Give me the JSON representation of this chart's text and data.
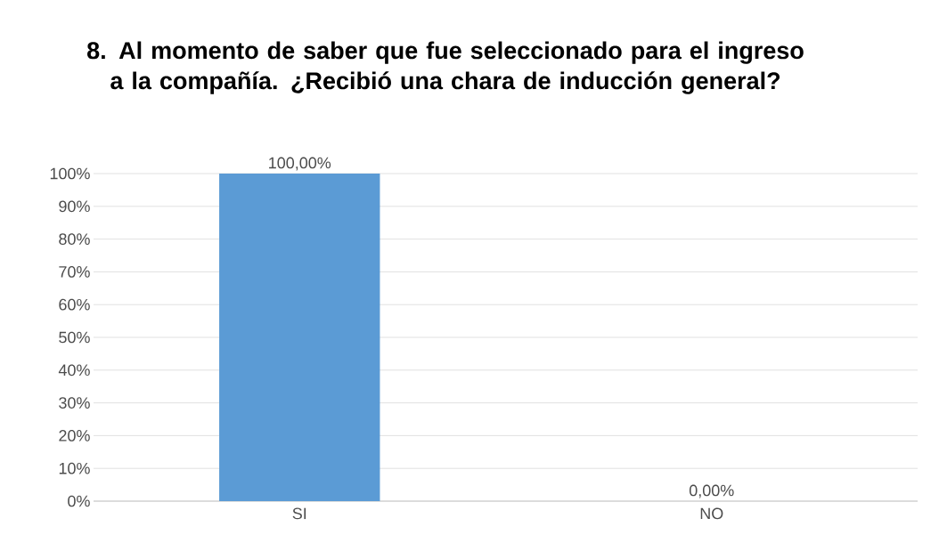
{
  "chart_data": {
    "type": "bar",
    "title": "8. Al momento de saber que fue seleccionado para el ingreso a la compañía. ¿Recibió una chara de inducción general?",
    "categories": [
      "SI",
      "NO"
    ],
    "values": [
      100,
      0
    ],
    "value_labels": [
      "100,00%",
      "0,00%"
    ],
    "color": "#5b9bd5",
    "ylim": [
      0,
      100
    ],
    "yticks": [
      {
        "value": 0,
        "label": "0%"
      },
      {
        "value": 10,
        "label": "10%"
      },
      {
        "value": 20,
        "label": "20%"
      },
      {
        "value": 30,
        "label": "30%"
      },
      {
        "value": 40,
        "label": "40%"
      },
      {
        "value": 50,
        "label": "50%"
      },
      {
        "value": 60,
        "label": "60%"
      },
      {
        "value": 70,
        "label": "70%"
      },
      {
        "value": 80,
        "label": "80%"
      },
      {
        "value": 90,
        "label": "90%"
      },
      {
        "value": 100,
        "label": "100%"
      }
    ],
    "grid": "y"
  }
}
